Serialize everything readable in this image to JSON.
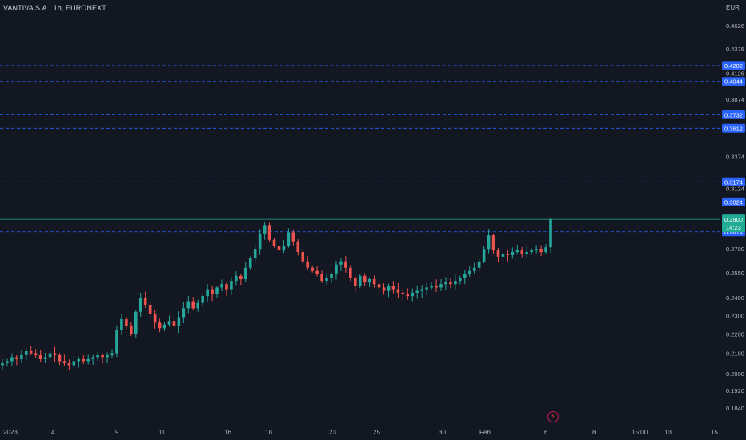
{
  "header": {
    "symbol_title": "VANTIVA S.A., 1h, EURONEXT",
    "currency": "EUR"
  },
  "colors": {
    "background": "#131722",
    "up": "#26a69a",
    "down": "#ef5350",
    "level_line": "#2962ff",
    "level_label_bg": "#2962ff",
    "price_label_bg": "#22ab94"
  },
  "icons": [
    "flash-icon"
  ],
  "current_price": {
    "value": 0.29,
    "label": "0.2900",
    "countdown": "14:23"
  },
  "chart_data": {
    "type": "candlestick",
    "title": "VANTIVA S.A., 1h, EURONEXT",
    "y_unit": "EUR",
    "y_scale": "log",
    "y_ticks": [
      "0.4626",
      "0.4376",
      "0.4126",
      "0.3874",
      "0.3374",
      "0.3124",
      "0.2700",
      "0.2550",
      "0.2400",
      "0.2300",
      "0.2200",
      "0.2100",
      "0.2000",
      "0.1920",
      "0.1840"
    ],
    "x_ticks": [
      "2023",
      "4",
      "9",
      "11",
      "16",
      "18",
      "23",
      "25",
      "30",
      "Feb",
      "6",
      "8",
      "15:00",
      "13",
      "15"
    ],
    "horizontal_levels": [
      0.4202,
      0.4044,
      0.3732,
      0.3612,
      0.3174,
      0.3024,
      0.2814
    ],
    "level_labels": [
      "0.4202",
      "0.4044",
      "0.3732",
      "0.3612",
      "0.3174",
      "0.3024",
      "0.2814"
    ],
    "candles_close_path": [
      0.205,
      0.206,
      0.208,
      0.207,
      0.209,
      0.211,
      0.21,
      0.209,
      0.207,
      0.208,
      0.21,
      0.209,
      0.206,
      0.205,
      0.204,
      0.206,
      0.207,
      0.206,
      0.207,
      0.208,
      0.209,
      0.208,
      0.209,
      0.21,
      0.222,
      0.228,
      0.224,
      0.22,
      0.232,
      0.24,
      0.236,
      0.231,
      0.226,
      0.223,
      0.225,
      0.227,
      0.224,
      0.229,
      0.234,
      0.238,
      0.234,
      0.237,
      0.241,
      0.245,
      0.242,
      0.246,
      0.248,
      0.245,
      0.25,
      0.253,
      0.251,
      0.258,
      0.264,
      0.27,
      0.28,
      0.286,
      0.276,
      0.272,
      0.269,
      0.272,
      0.281,
      0.275,
      0.268,
      0.262,
      0.258,
      0.256,
      0.254,
      0.25,
      0.252,
      0.254,
      0.26,
      0.262,
      0.258,
      0.252,
      0.247,
      0.253,
      0.249,
      0.251,
      0.248,
      0.246,
      0.244,
      0.247,
      0.245,
      0.243,
      0.242,
      0.241,
      0.243,
      0.244,
      0.245,
      0.246,
      0.247,
      0.246,
      0.248,
      0.249,
      0.248,
      0.25,
      0.252,
      0.254,
      0.256,
      0.258,
      0.262,
      0.27,
      0.279,
      0.269,
      0.265,
      0.267,
      0.266,
      0.268,
      0.269,
      0.267,
      0.268,
      0.269,
      0.27,
      0.268,
      0.271,
      0.29
    ],
    "grid": false,
    "legend": "none"
  }
}
